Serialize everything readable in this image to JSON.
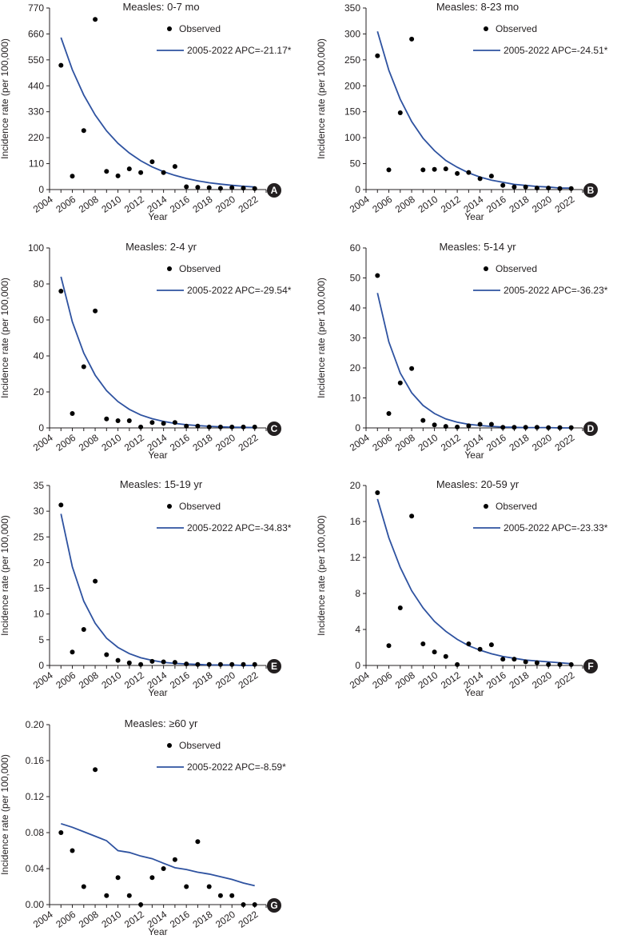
{
  "figure": {
    "colors": {
      "fit_line": "#2e52a0",
      "points": "#000000",
      "badge": "#231f20",
      "axis": "#231f20"
    }
  },
  "chart_data": [
    {
      "panel": "A",
      "type": "scatter",
      "title": "Measles: 0-7 mo",
      "xlabel": "Year",
      "ylabel": "Incidence rate (per 100,000)",
      "xlim": [
        2004,
        2023
      ],
      "xticks": [
        "2004",
        "2006",
        "2008",
        "2010",
        "2012",
        "2014",
        "2016",
        "2018",
        "2020",
        "2022"
      ],
      "ylim": [
        0,
        770
      ],
      "yticks": [
        "0",
        "110",
        "220",
        "330",
        "440",
        "550",
        "660",
        "770"
      ],
      "legend": {
        "observed": "Observed",
        "fit": "2005-2022 APC=-21.17*"
      },
      "observed": {
        "x": [
          2005,
          2006,
          2007,
          2008,
          2009,
          2010,
          2011,
          2012,
          2013,
          2014,
          2015,
          2016,
          2017,
          2018,
          2019,
          2020,
          2021,
          2022
        ],
        "y": [
          527,
          57,
          250,
          722,
          77,
          58,
          88,
          72,
          118,
          72,
          98,
          12,
          10,
          8,
          5,
          8,
          6,
          4
        ]
      },
      "fit": {
        "x": [
          2005,
          2006,
          2007,
          2008,
          2009,
          2010,
          2011,
          2012,
          2013,
          2014,
          2015,
          2016,
          2017,
          2018,
          2019,
          2020,
          2021,
          2022
        ],
        "y": [
          645,
          508,
          401,
          316,
          249,
          196,
          155,
          122,
          96,
          76,
          60,
          47,
          37,
          29,
          23,
          18,
          14,
          11
        ]
      }
    },
    {
      "panel": "B",
      "type": "scatter",
      "title": "Measles: 8-23 mo",
      "xlabel": "Year",
      "ylabel": "Incidence rate (per 100,000)",
      "xlim": [
        2004,
        2023
      ],
      "xticks": [
        "2004",
        "2006",
        "2008",
        "2010",
        "2012",
        "2014",
        "2016",
        "2018",
        "2020",
        "2022"
      ],
      "ylim": [
        0,
        350
      ],
      "yticks": [
        "0",
        "50",
        "100",
        "150",
        "200",
        "250",
        "300",
        "350"
      ],
      "legend": {
        "observed": "Observed",
        "fit": "2005-2022 APC=-24.51*"
      },
      "observed": {
        "x": [
          2005,
          2006,
          2007,
          2008,
          2009,
          2010,
          2011,
          2012,
          2013,
          2014,
          2015,
          2016,
          2017,
          2018,
          2019,
          2020,
          2021,
          2022
        ],
        "y": [
          258,
          38,
          148,
          290,
          38,
          39,
          40,
          31,
          33,
          21,
          26,
          8,
          5,
          5,
          3,
          3,
          2,
          2
        ]
      },
      "fit": {
        "x": [
          2005,
          2006,
          2007,
          2008,
          2009,
          2010,
          2011,
          2012,
          2013,
          2014,
          2015,
          2016,
          2017,
          2018,
          2019,
          2020,
          2021,
          2022
        ],
        "y": [
          305,
          230,
          174,
          131,
          99,
          75,
          56,
          43,
          32,
          24,
          18,
          14,
          10,
          8,
          6,
          5,
          3,
          3
        ]
      }
    },
    {
      "panel": "C",
      "type": "scatter",
      "title": "Measles: 2-4 yr",
      "xlabel": "Year",
      "ylabel": "Incidence rate (per 100,000)",
      "xlim": [
        2004,
        2023
      ],
      "xticks": [
        "2004",
        "2006",
        "2008",
        "2010",
        "2012",
        "2014",
        "2016",
        "2018",
        "2020",
        "2022"
      ],
      "ylim": [
        0,
        100
      ],
      "yticks": [
        "0",
        "20",
        "40",
        "60",
        "80",
        "100"
      ],
      "legend": {
        "observed": "Observed",
        "fit": "2005-2022 APC=-29.54*"
      },
      "observed": {
        "x": [
          2005,
          2006,
          2007,
          2008,
          2009,
          2010,
          2011,
          2012,
          2013,
          2014,
          2015,
          2016,
          2017,
          2018,
          2019,
          2020,
          2021,
          2022
        ],
        "y": [
          76,
          8,
          34,
          65,
          5,
          4,
          4,
          0.5,
          3,
          2.5,
          3,
          1,
          1,
          0.5,
          0.5,
          0.5,
          0.5,
          0.5
        ]
      },
      "fit": {
        "x": [
          2005,
          2006,
          2007,
          2008,
          2009,
          2010,
          2011,
          2012,
          2013,
          2014,
          2015,
          2016,
          2017,
          2018,
          2019,
          2020,
          2021,
          2022
        ],
        "y": [
          84,
          59,
          41.6,
          29.3,
          20.7,
          14.6,
          10.3,
          7.2,
          5.1,
          3.6,
          2.5,
          1.8,
          1.3,
          0.9,
          0.6,
          0.4,
          0.3,
          0.2
        ]
      }
    },
    {
      "panel": "D",
      "type": "scatter",
      "title": "Measles: 5-14 yr",
      "xlabel": "Year",
      "ylabel": "Incidence rate (per 100,000)",
      "xlim": [
        2004,
        2023
      ],
      "xticks": [
        "2004",
        "2006",
        "2008",
        "2010",
        "2012",
        "2014",
        "2016",
        "2018",
        "2020",
        "2022"
      ],
      "ylim": [
        0,
        60
      ],
      "yticks": [
        "0",
        "10",
        "20",
        "30",
        "40",
        "50",
        "60"
      ],
      "legend": {
        "observed": "Observed",
        "fit": "2005-2022 APC=-36.23*"
      },
      "observed": {
        "x": [
          2005,
          2006,
          2007,
          2008,
          2009,
          2010,
          2011,
          2012,
          2013,
          2014,
          2015,
          2016,
          2017,
          2018,
          2019,
          2020,
          2021,
          2022
        ],
        "y": [
          50.8,
          4.8,
          15,
          19.8,
          2.5,
          1,
          0.5,
          0.3,
          0.7,
          1.2,
          1.2,
          0.2,
          0.2,
          0.2,
          0.2,
          0.1,
          0.1,
          0.1
        ]
      },
      "fit": {
        "x": [
          2005,
          2006,
          2007,
          2008,
          2009,
          2010,
          2011,
          2012,
          2013,
          2014,
          2015,
          2016,
          2017,
          2018,
          2019,
          2020,
          2021,
          2022
        ],
        "y": [
          45,
          28.7,
          18.3,
          11.7,
          7.5,
          4.8,
          3,
          1.9,
          1.2,
          0.8,
          0.5,
          0.3,
          0.2,
          0.1,
          0.1,
          0.1,
          0,
          0
        ]
      }
    },
    {
      "panel": "E",
      "type": "scatter",
      "title": "Measles: 15-19 yr",
      "xlabel": "Year",
      "ylabel": "Incidence rate (per 100,000)",
      "xlim": [
        2004,
        2023
      ],
      "xticks": [
        "2004",
        "2006",
        "2008",
        "2010",
        "2012",
        "2014",
        "2016",
        "2018",
        "2020",
        "2022"
      ],
      "ylim": [
        0,
        35
      ],
      "yticks": [
        "0",
        "5",
        "10",
        "15",
        "20",
        "25",
        "30",
        "35"
      ],
      "legend": {
        "observed": "Observed",
        "fit": "2005-2022 APC=-34.83*"
      },
      "observed": {
        "x": [
          2005,
          2006,
          2007,
          2008,
          2009,
          2010,
          2011,
          2012,
          2013,
          2014,
          2015,
          2016,
          2017,
          2018,
          2019,
          2020,
          2021,
          2022
        ],
        "y": [
          31.2,
          2.6,
          7,
          16.4,
          2.1,
          1,
          0.5,
          0.2,
          0.8,
          0.7,
          0.6,
          0.3,
          0.2,
          0.2,
          0.2,
          0.2,
          0.2,
          0.2
        ]
      },
      "fit": {
        "x": [
          2005,
          2006,
          2007,
          2008,
          2009,
          2010,
          2011,
          2012,
          2013,
          2014,
          2015,
          2016,
          2017,
          2018,
          2019,
          2020,
          2021,
          2022
        ],
        "y": [
          29.5,
          19.2,
          12.5,
          8.2,
          5.3,
          3.5,
          2.3,
          1.5,
          1,
          0.6,
          0.4,
          0.3,
          0.2,
          0.1,
          0.1,
          0.1,
          0,
          0
        ]
      }
    },
    {
      "panel": "F",
      "type": "scatter",
      "title": "Measles: 20-59 yr",
      "xlabel": "Year",
      "ylabel": "Incidence rate (per 100,000)",
      "xlim": [
        2004,
        2023
      ],
      "xticks": [
        "2004",
        "2006",
        "2008",
        "2010",
        "2012",
        "2014",
        "2016",
        "2018",
        "2020",
        "2022"
      ],
      "ylim": [
        0,
        20
      ],
      "yticks": [
        "0",
        "4",
        "8",
        "12",
        "16",
        "20"
      ],
      "legend": {
        "observed": "Observed",
        "fit": "2005-2022 APC=-23.33*"
      },
      "observed": {
        "x": [
          2005,
          2006,
          2007,
          2008,
          2009,
          2010,
          2011,
          2012,
          2013,
          2014,
          2015,
          2016,
          2017,
          2018,
          2019,
          2020,
          2021,
          2022
        ],
        "y": [
          19.2,
          2.2,
          6.4,
          16.6,
          2.4,
          1.5,
          1,
          0.1,
          2.4,
          1.8,
          2.3,
          0.7,
          0.7,
          0.4,
          0.3,
          0.1,
          0.1,
          0.1
        ]
      },
      "fit": {
        "x": [
          2005,
          2006,
          2007,
          2008,
          2009,
          2010,
          2011,
          2012,
          2013,
          2014,
          2015,
          2016,
          2017,
          2018,
          2019,
          2020,
          2021,
          2022
        ],
        "y": [
          18.5,
          14.2,
          10.9,
          8.3,
          6.4,
          4.9,
          3.8,
          2.9,
          2.2,
          1.7,
          1.3,
          1,
          0.8,
          0.6,
          0.5,
          0.4,
          0.3,
          0.2
        ]
      }
    },
    {
      "panel": "G",
      "type": "scatter",
      "title": "Measles: ≥60 yr",
      "xlabel": "Year",
      "ylabel": "Incidence rate (per 100,000)",
      "xlim": [
        2004,
        2023
      ],
      "xticks": [
        "2004",
        "2006",
        "2008",
        "2010",
        "2012",
        "2014",
        "2016",
        "2018",
        "2020",
        "2022"
      ],
      "ylim": [
        0,
        0.2
      ],
      "yticks": [
        "0.00",
        "0.04",
        "0.08",
        "0.12",
        "0.16",
        "0.20"
      ],
      "legend": {
        "observed": "Observed",
        "fit": "2005-2022 APC=-8.59*"
      },
      "observed": {
        "x": [
          2005,
          2006,
          2007,
          2008,
          2009,
          2010,
          2011,
          2012,
          2013,
          2014,
          2015,
          2016,
          2017,
          2018,
          2019,
          2020,
          2021,
          2022
        ],
        "y": [
          0.08,
          0.06,
          0.02,
          0.15,
          0.01,
          0.03,
          0.01,
          0,
          0.03,
          0.04,
          0.05,
          0.02,
          0.07,
          0.02,
          0.01,
          0.01,
          0,
          0
        ]
      },
      "fit": {
        "x": [
          2005,
          2006,
          2007,
          2008,
          2009,
          2010,
          2011,
          2012,
          2013,
          2014,
          2015,
          2016,
          2017,
          2018,
          2019,
          2020,
          2021,
          2022
        ],
        "y": [
          0.09,
          0.086,
          0.081,
          0.076,
          0.071,
          0.06,
          0.058,
          0.054,
          0.051,
          0.046,
          0.041,
          0.039,
          0.036,
          0.034,
          0.031,
          0.028,
          0.024,
          0.021
        ]
      }
    }
  ]
}
